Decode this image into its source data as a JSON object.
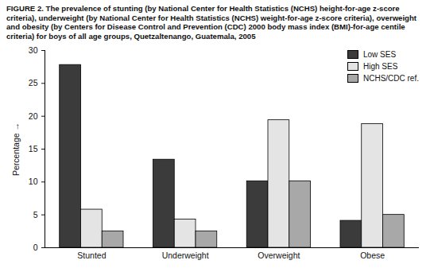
{
  "chart_data": {
    "type": "bar",
    "title": "FIGURE 2. The prevalence of stunting (by National Center for Health Statistics (NCHS) height-for-age z-score criteria), underweight (by National Center for Health Statistics (NCHS) weight-for-age z-score criteria), overweight and obesity (by Centers for Disease Control and Prevention (CDC) 2000 body mass index (BMI)-for-age centile criteria) for boys of all age groups, Quetzaltenango, Guatemala, 2005",
    "y_label": "Percentage",
    "categories": [
      "Stunted",
      "Underweight",
      "Overweight",
      "Obese"
    ],
    "series": [
      {
        "name": "Low SES",
        "color": "#3b3b3b",
        "values": [
          27.8,
          13.4,
          10.1,
          4.1
        ]
      },
      {
        "name": "High SES",
        "color": "#e4e4e4",
        "values": [
          5.8,
          4.3,
          19.4,
          18.8
        ]
      },
      {
        "name": "NCHS/CDC ref.",
        "color": "#a8a8a8",
        "values": [
          2.5,
          2.5,
          10.1,
          5.0
        ]
      }
    ],
    "ylim": [
      0,
      30
    ],
    "yticks": [
      0,
      5,
      10,
      15,
      20,
      25,
      30
    ],
    "grid": false,
    "legend": "top-right"
  }
}
